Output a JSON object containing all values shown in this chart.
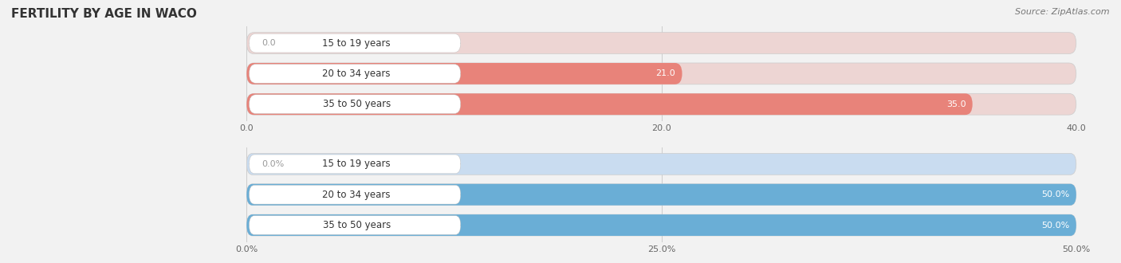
{
  "title": "FERTILITY BY AGE IN WACO",
  "source": "Source: ZipAtlas.com",
  "top_chart": {
    "categories": [
      "15 to 19 years",
      "20 to 34 years",
      "35 to 50 years"
    ],
    "values": [
      0.0,
      21.0,
      35.0
    ],
    "xlim": [
      0,
      40.0
    ],
    "xticks": [
      0.0,
      20.0,
      40.0
    ],
    "xtick_labels": [
      "0.0",
      "20.0",
      "40.0"
    ],
    "bar_color": "#E8837A",
    "bar_bg_color": "#EDD5D3",
    "label_inside_color": "#FFFFFF",
    "label_outside_color": "#999999"
  },
  "bottom_chart": {
    "categories": [
      "15 to 19 years",
      "20 to 34 years",
      "35 to 50 years"
    ],
    "values": [
      0.0,
      50.0,
      50.0
    ],
    "xlim": [
      0,
      50.0
    ],
    "xticks": [
      0.0,
      25.0,
      50.0
    ],
    "xtick_labels": [
      "0.0%",
      "25.0%",
      "50.0%"
    ],
    "bar_color": "#6AAED6",
    "bar_bg_color": "#C9DCF0",
    "label_inside_color": "#FFFFFF",
    "label_outside_color": "#999999"
  },
  "bg_color": "#F2F2F2",
  "label_font_color": "#333333",
  "title_color": "#333333",
  "title_fontsize": 11,
  "source_fontsize": 8,
  "bar_label_fontsize": 8,
  "cat_label_fontsize": 8.5,
  "tick_fontsize": 8
}
